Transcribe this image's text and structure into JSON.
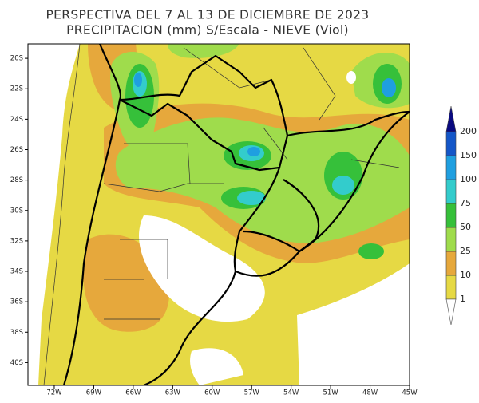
{
  "map": {
    "title": "PERSPECTIVA DEL 7 AL 13 DE DICIEMBRE DE 2023",
    "subtitle": "PRECIPITACION (mm) S/Escala - NIEVE (Viol)",
    "xlim": [
      -74.0,
      -45.0
    ],
    "ylim": [
      -41.5,
      -19.05
    ],
    "xticks": [
      {
        "value": -72,
        "label": "72W"
      },
      {
        "value": -69,
        "label": "69W"
      },
      {
        "value": -66,
        "label": "66W"
      },
      {
        "value": -63,
        "label": "63W"
      },
      {
        "value": -60,
        "label": "60W"
      },
      {
        "value": -57,
        "label": "57W"
      },
      {
        "value": -54,
        "label": "54W"
      },
      {
        "value": -51,
        "label": "51W"
      },
      {
        "value": -48,
        "label": "48W"
      },
      {
        "value": -45,
        "label": "45W"
      }
    ],
    "yticks": [
      {
        "value": -20,
        "label": "20S"
      },
      {
        "value": -22,
        "label": "22S"
      },
      {
        "value": -24,
        "label": "24S"
      },
      {
        "value": -26,
        "label": "26S"
      },
      {
        "value": -28,
        "label": "28S"
      },
      {
        "value": -30,
        "label": "30S"
      },
      {
        "value": -32,
        "label": "32S"
      },
      {
        "value": -34,
        "label": "34S"
      },
      {
        "value": -36,
        "label": "36S"
      },
      {
        "value": -38,
        "label": "38S"
      },
      {
        "value": -40,
        "label": "40S"
      }
    ],
    "colorbar": {
      "levels": [
        1,
        10,
        25,
        50,
        75,
        100,
        150,
        200
      ],
      "colors": [
        "#e6d944",
        "#e6a83c",
        "#9fdc4c",
        "#36c03a",
        "#33cccc",
        "#1f9fe0",
        "#1456c8"
      ],
      "under_color": "#ffffff",
      "over_color": "#0a0a80"
    }
  }
}
